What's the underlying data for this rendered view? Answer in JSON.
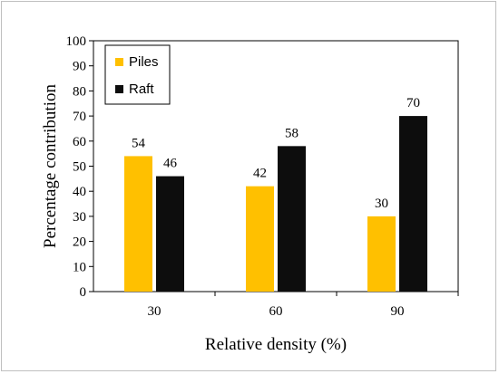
{
  "chart_data": {
    "type": "bar",
    "categories": [
      "30",
      "60",
      "90"
    ],
    "series": [
      {
        "name": "Piles",
        "values": [
          54,
          42,
          30
        ],
        "color": "#FFC000"
      },
      {
        "name": "Raft",
        "values": [
          46,
          58,
          70
        ],
        "color": "#0D0D0D"
      }
    ],
    "xlabel": "Relative density (%)",
    "ylabel": "Percentage contribution",
    "ylim": [
      0,
      100
    ],
    "yticks": [
      0,
      10,
      20,
      30,
      40,
      50,
      60,
      70,
      80,
      90,
      100
    ],
    "grid": false,
    "legend": "top-left"
  }
}
